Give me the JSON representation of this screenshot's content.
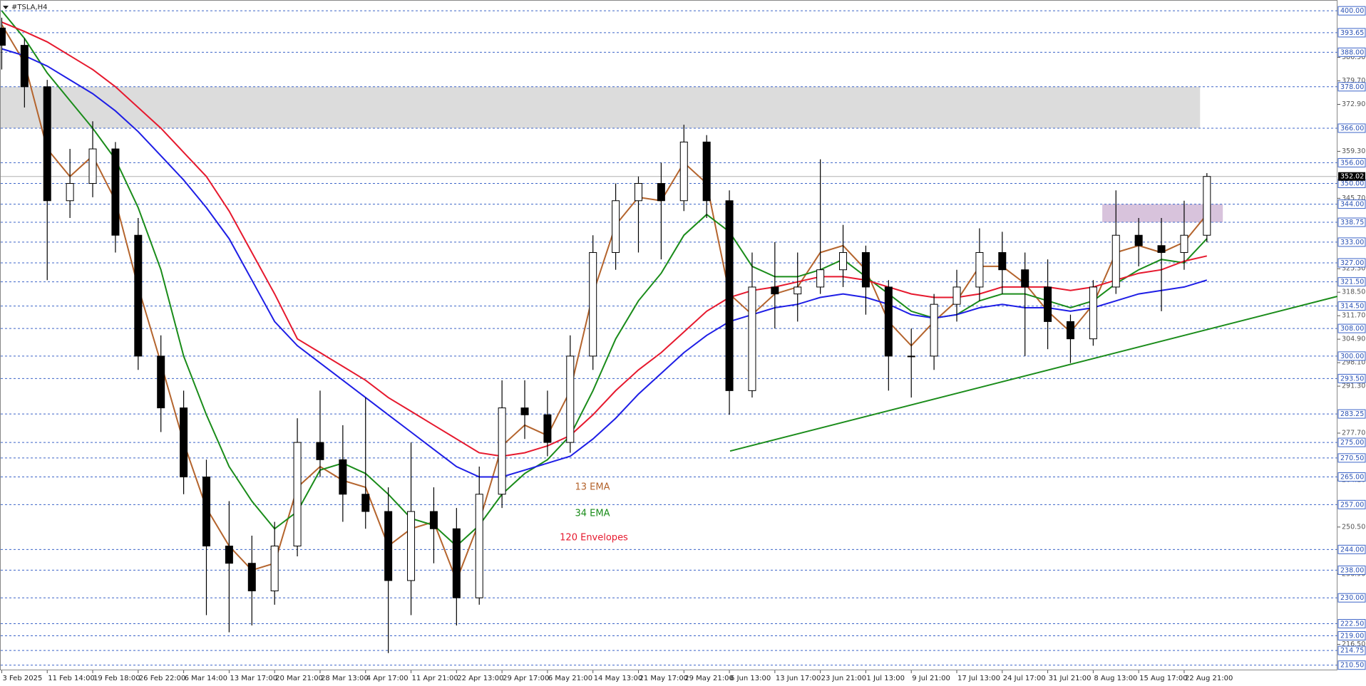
{
  "chart_data": {
    "type": "candlestick",
    "title": "#TSLA,H4",
    "categories": [
      "3 Feb 2025",
      null,
      "11 Feb 14:00",
      null,
      "19 Feb 18:00",
      null,
      "26 Feb 22:00",
      null,
      "6 Mar 14:00",
      null,
      "13 Mar 17:00",
      null,
      "20 Mar 21:00",
      null,
      "28 Mar 13:00",
      null,
      "4 Apr 17:00",
      null,
      "11 Apr 21:00",
      null,
      "22 Apr 13:00",
      null,
      "29 Apr 17:00",
      null,
      "6 May 21:00",
      null,
      "14 May 13:00",
      null,
      "21 May 17:00",
      null,
      "29 May 21:00",
      null,
      "6 Jun 13:00",
      null,
      "13 Jun 17:00",
      null,
      "23 Jun 21:00",
      null,
      "1 Jul 13:00",
      null,
      "9 Jul 21:00",
      null,
      "17 Jul 13:00",
      null,
      "24 Jul 17:00",
      null,
      "31 Jul 21:00",
      null,
      "8 Aug 13:00",
      null,
      "15 Aug 17:00",
      null,
      "22 Aug 21:00",
      null
    ],
    "open": [
      395,
      390,
      378,
      345,
      350,
      360,
      335,
      300,
      285,
      265,
      245,
      240,
      232,
      245,
      275,
      270,
      260,
      255,
      235,
      255,
      250,
      230,
      260,
      285,
      283,
      275,
      300,
      330,
      345,
      350,
      345,
      362,
      345,
      290,
      320,
      318,
      320,
      325,
      330,
      320,
      300,
      300,
      315,
      320,
      330,
      325,
      320,
      310,
      305,
      320,
      335,
      332,
      330,
      335
    ],
    "high": [
      398,
      392,
      380,
      360,
      368,
      362,
      340,
      306,
      290,
      270,
      258,
      248,
      252,
      282,
      290,
      280,
      288,
      262,
      275,
      262,
      256,
      268,
      293,
      293,
      290,
      306,
      335,
      350,
      352,
      356,
      367,
      364,
      348,
      330,
      333,
      330,
      357,
      338,
      332,
      322,
      308,
      318,
      325,
      337,
      336,
      330,
      328,
      312,
      322,
      348,
      340,
      340,
      345,
      353
    ],
    "low": [
      383,
      372,
      322,
      340,
      346,
      330,
      296,
      278,
      260,
      225,
      220,
      222,
      228,
      242,
      265,
      252,
      250,
      214,
      225,
      240,
      222,
      228,
      256,
      276,
      271,
      272,
      296,
      325,
      330,
      328,
      342,
      340,
      283,
      288,
      308,
      310,
      318,
      320,
      312,
      290,
      288,
      296,
      310,
      316,
      318,
      300,
      302,
      298,
      303,
      318,
      326,
      313,
      325,
      333
    ],
    "close": [
      390,
      378,
      345,
      350,
      360,
      335,
      300,
      285,
      265,
      245,
      240,
      232,
      245,
      275,
      270,
      260,
      255,
      235,
      255,
      250,
      230,
      260,
      285,
      283,
      275,
      300,
      330,
      345,
      350,
      345,
      362,
      345,
      290,
      320,
      318,
      320,
      325,
      330,
      320,
      300,
      300,
      315,
      320,
      330,
      325,
      320,
      310,
      305,
      320,
      335,
      332,
      330,
      335,
      352.02
    ],
    "series": [
      {
        "name": "13 EMA",
        "color": "#b4642d",
        "values": [
          396,
          385,
          360,
          352,
          358,
          345,
          320,
          298,
          275,
          256,
          245,
          238,
          240,
          262,
          268,
          264,
          262,
          245,
          250,
          252,
          235,
          252,
          274,
          280,
          277,
          290,
          318,
          338,
          346,
          345,
          356,
          350,
          318,
          312,
          318,
          320,
          330,
          332,
          325,
          310,
          303,
          310,
          316,
          326,
          326,
          321,
          313,
          307,
          315,
          330,
          332,
          330,
          333,
          341
        ]
      },
      {
        "name": "34 EMA",
        "color": "#1a8c1a",
        "values": [
          400,
          392,
          382,
          374,
          366,
          357,
          343,
          325,
          300,
          283,
          268,
          258,
          250,
          255,
          267,
          269,
          266,
          260,
          253,
          251,
          245,
          251,
          260,
          266,
          270,
          277,
          290,
          305,
          316,
          324,
          335,
          341,
          336,
          326,
          323,
          323,
          325,
          328,
          323,
          318,
          313,
          311,
          312,
          316,
          318,
          318,
          316,
          314,
          316,
          321,
          325,
          328,
          327,
          334
        ]
      },
      {
        "name": "120 Envelopes",
        "color": "#e6192e",
        "values": [
          396.7,
          394,
          391,
          387,
          383,
          378,
          372,
          366,
          359,
          352,
          342,
          330,
          318,
          305,
          301,
          297,
          293,
          288,
          284,
          280,
          276,
          272,
          271,
          272,
          274,
          277,
          283,
          290,
          296,
          301,
          307,
          313,
          317,
          319,
          320,
          321.5,
          323,
          323,
          322,
          320,
          318,
          317,
          317,
          318,
          320,
          320,
          320,
          319,
          320,
          322,
          324,
          325,
          327.5,
          329
        ]
      },
      {
        "color": "#1e1ee6",
        "values": [
          389,
          387,
          384,
          380,
          376,
          371,
          365,
          358,
          351,
          343,
          334,
          322,
          310,
          303,
          298,
          293,
          288,
          283,
          278,
          273,
          268,
          265,
          265,
          267,
          269,
          271,
          276,
          282,
          289,
          295,
          301,
          306,
          310,
          312,
          314,
          315,
          317,
          318,
          317,
          315,
          312,
          311,
          312,
          314,
          315,
          314,
          314,
          313,
          314,
          316,
          318,
          319,
          320,
          322
        ]
      }
    ],
    "ylim": [
      209,
      402.3
    ],
    "yticks": [
      {
        "value": 386.5,
        "label": "386.50"
      },
      {
        "value": 379.7,
        "label": "379.70"
      },
      {
        "value": 372.9,
        "label": "372.90"
      },
      {
        "value": 359.3,
        "label": "359.30"
      },
      {
        "value": 345.7,
        "label": "345.70"
      },
      {
        "value": 325.3,
        "label": "325.30"
      },
      {
        "value": 318.5,
        "label": "318.50"
      },
      {
        "value": 311.7,
        "label": "311.70"
      },
      {
        "value": 304.9,
        "label": "304.90"
      },
      {
        "value": 298.1,
        "label": "298.10"
      },
      {
        "value": 291.3,
        "label": "291.30"
      },
      {
        "value": 277.7,
        "label": "277.70"
      },
      {
        "value": 264.1,
        "label": "264.10"
      },
      {
        "value": 250.5,
        "label": "250.50"
      },
      {
        "value": 236.9,
        "label": "236.90"
      },
      {
        "value": 216.5,
        "label": "216.50"
      }
    ],
    "levels": [
      {
        "value": 400,
        "label": "400.00"
      },
      {
        "value": 393.65,
        "label": "393.65"
      },
      {
        "value": 388,
        "label": "388.00"
      },
      {
        "value": 378,
        "label": "378.00"
      },
      {
        "value": 366,
        "label": "366.00"
      },
      {
        "value": 356,
        "label": "356.00"
      },
      {
        "value": 350,
        "label": "350.00"
      },
      {
        "value": 344,
        "label": "344.00"
      },
      {
        "value": 338.75,
        "label": "338.75"
      },
      {
        "value": 333,
        "label": "333.00"
      },
      {
        "value": 327,
        "label": "327.00"
      },
      {
        "value": 321.5,
        "label": "321.50"
      },
      {
        "value": 314.5,
        "label": "314.50"
      },
      {
        "value": 308,
        "label": "308.00"
      },
      {
        "value": 300,
        "label": "300.00"
      },
      {
        "value": 293.5,
        "label": "293.50"
      },
      {
        "value": 283.25,
        "label": "283.25"
      },
      {
        "value": 275,
        "label": "275.00"
      },
      {
        "value": 270.5,
        "label": "270.50"
      },
      {
        "value": 265,
        "label": "265.00"
      },
      {
        "value": 257,
        "label": "257.00"
      },
      {
        "value": 244,
        "label": "244.00"
      },
      {
        "value": 238,
        "label": "238.00"
      },
      {
        "value": 230,
        "label": "230.00"
      },
      {
        "value": 222.5,
        "label": "222.50"
      },
      {
        "value": 219,
        "label": "219.00"
      },
      {
        "value": 214.75,
        "label": "214.75"
      },
      {
        "value": 210.5,
        "label": "210.50"
      }
    ],
    "last_price": 352.02,
    "zones": [
      {
        "x": [
          -0.1,
          52.7
        ],
        "y": [
          366,
          378
        ],
        "color": "#dcdcdc"
      },
      {
        "x": [
          48.4,
          53.7
        ],
        "y": [
          338.75,
          344
        ],
        "color": "#d8c3dc"
      }
    ],
    "trendline": {
      "x": [
        32.03,
        58.74
      ],
      "y": [
        272.5,
        317.3
      ],
      "color": "#1a8c1a"
    }
  }
}
